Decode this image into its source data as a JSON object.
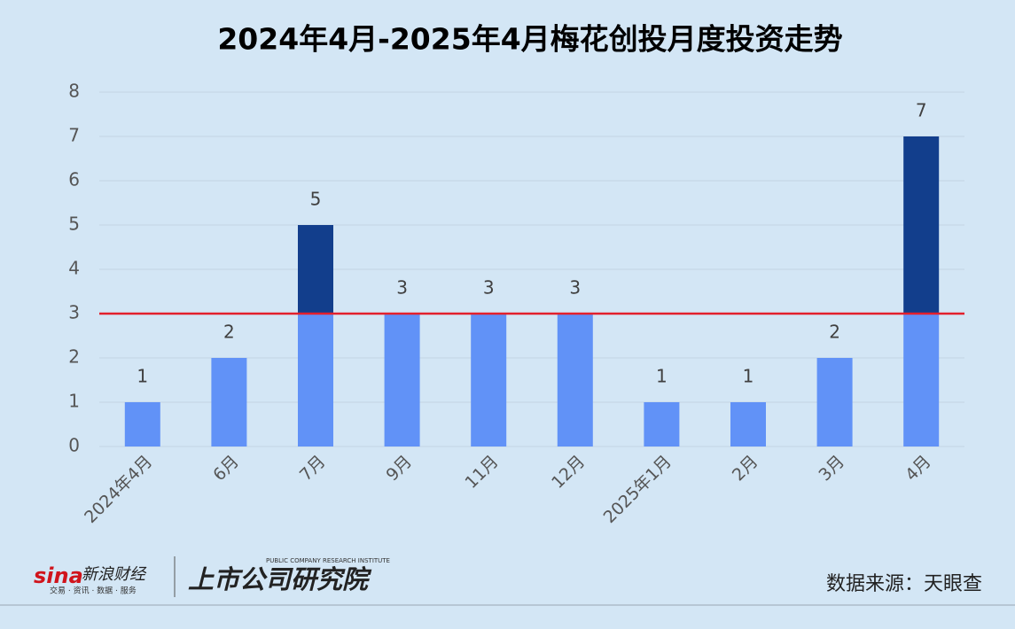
{
  "chart_data": {
    "type": "bar",
    "title": "2024年4月-2025年4月梅花创投月度投资走势",
    "categories": [
      "2024年4月",
      "6月",
      "7月",
      "9月",
      "11月",
      "12月",
      "2025年1月",
      "2月",
      "3月",
      "4月"
    ],
    "values": [
      1,
      2,
      5,
      3,
      3,
      3,
      1,
      1,
      2,
      7
    ],
    "color": "#6192f7",
    "above_color": "#123e8c",
    "reference_line": 3,
    "reference_color": "#e3202c",
    "ylim": [
      0,
      8
    ],
    "yticks": [
      0,
      1,
      2,
      3,
      4,
      5,
      6,
      7,
      8
    ],
    "grid": true
  },
  "footer": {
    "sina_logo": "sina",
    "sina_name": "新浪财经",
    "sina_tagline": "交易 · 资讯 · 数据 · 服务",
    "institute_name": "上市公司研究院",
    "institute_en": "PUBLIC COMPANY RESEARCH INSTITUTE",
    "source": "数据来源：天眼查"
  }
}
